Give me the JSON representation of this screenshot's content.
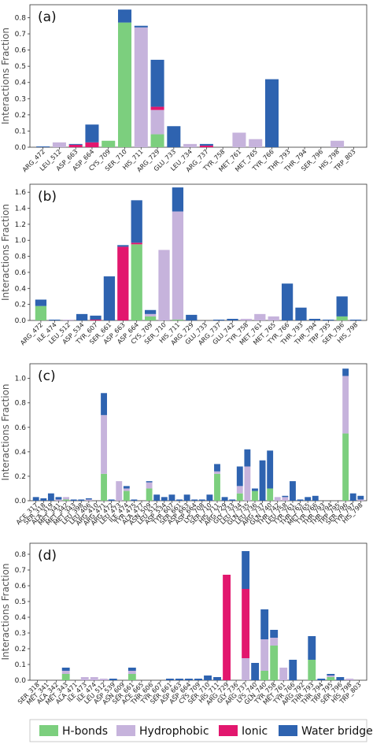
{
  "colors": {
    "H-bonds": "#7ccf7e",
    "Hydrophobic": "#c6b3dc",
    "Ionic": "#e2176e",
    "Water bridges": "#2e63b0"
  },
  "legend": {
    "position": "bottom",
    "items": [
      "H-bonds",
      "Hydrophobic",
      "Ionic",
      "Water bridges"
    ]
  },
  "chart_data": [
    {
      "type": "bar",
      "stacked": true,
      "panel_label": "(a)",
      "ylabel": "Interactions Fraction",
      "ylim": [
        0,
        0.88
      ],
      "yticks": [
        0.0,
        0.1,
        0.2,
        0.3,
        0.4,
        0.5,
        0.6,
        0.7,
        0.8
      ],
      "categories": [
        "ARG_472",
        "LEU_512",
        "ASP_663",
        "ASP_664",
        "CYS_709",
        "SER_710",
        "HIS_711",
        "ARG_729",
        "GLU_733",
        "LEU_734",
        "ARG_737",
        "TYR_758",
        "MET_761",
        "MET_765",
        "TYR_766",
        "THR_793",
        "THR_794",
        "SER_796",
        "HIS_798",
        "TRP_803"
      ],
      "series": [
        {
          "name": "H-bonds",
          "values": [
            0,
            0,
            0,
            0,
            0.04,
            0.77,
            0,
            0.08,
            0,
            0,
            0,
            0,
            0,
            0,
            0,
            0,
            0,
            0,
            0,
            0
          ]
        },
        {
          "name": "Hydrophobic",
          "values": [
            0,
            0.03,
            0,
            0,
            0,
            0,
            0.74,
            0.15,
            0,
            0.02,
            0,
            0,
            0.09,
            0.05,
            0,
            0,
            0,
            0,
            0.04,
            0
          ]
        },
        {
          "name": "Ionic",
          "values": [
            0,
            0,
            0.015,
            0.03,
            0,
            0,
            0,
            0.02,
            0,
            0,
            0.01,
            0,
            0,
            0,
            0,
            0,
            0,
            0,
            0,
            0
          ]
        },
        {
          "name": "Water bridges",
          "values": [
            0.005,
            0,
            0.005,
            0.11,
            0,
            0.08,
            0.01,
            0.29,
            0.13,
            0,
            0.01,
            0,
            0,
            0,
            0.42,
            0,
            0,
            0,
            0,
            0
          ]
        }
      ]
    },
    {
      "type": "bar",
      "stacked": true,
      "panel_label": "(b)",
      "ylabel": "Interactions Fraction",
      "ylim": [
        0,
        1.7
      ],
      "yticks": [
        0.0,
        0.2,
        0.4,
        0.6,
        0.8,
        1.0,
        1.2,
        1.4,
        1.6
      ],
      "categories": [
        "ARG_472",
        "ILE_474",
        "LEU_512",
        "ASP_534",
        "TYR_607",
        "SER_661",
        "ASP_663",
        "ASP_664",
        "CYS_709",
        "SER_710",
        "HIS_711",
        "ARG_729",
        "GLU_733",
        "ARG_737",
        "GLU_742",
        "TYR_758",
        "MET_761",
        "MET_765",
        "TYR_766",
        "THR_793",
        "THR_794",
        "TRP_795",
        "SER_796",
        "HIS_798"
      ],
      "series": [
        {
          "name": "H-bonds",
          "values": [
            0.18,
            0,
            0,
            0,
            0,
            0,
            0,
            0.95,
            0.05,
            0,
            0.01,
            0,
            0,
            0,
            0,
            0,
            0,
            0,
            0,
            0,
            0,
            0,
            0.05,
            0
          ]
        },
        {
          "name": "Hydrophobic",
          "values": [
            0,
            0,
            0.01,
            0,
            0,
            0,
            0,
            0,
            0.03,
            0.88,
            1.35,
            0,
            0,
            0,
            0,
            0.02,
            0.08,
            0.05,
            0,
            0,
            0,
            0,
            0,
            0
          ]
        },
        {
          "name": "Ionic",
          "values": [
            0,
            0,
            0,
            0,
            0.01,
            0,
            0.92,
            0.02,
            0,
            0,
            0,
            0,
            0,
            0,
            0,
            0,
            0,
            0,
            0,
            0,
            0,
            0,
            0,
            0
          ]
        },
        {
          "name": "Water bridges",
          "values": [
            0.08,
            0.01,
            0,
            0.08,
            0.05,
            0.55,
            0.02,
            0.53,
            0.05,
            0,
            0.3,
            0.07,
            0,
            0.01,
            0.02,
            0,
            0,
            0,
            0.46,
            0.16,
            0.02,
            0.01,
            0.25,
            0.01
          ]
        }
      ]
    },
    {
      "type": "bar",
      "stacked": true,
      "panel_label": "(c)",
      "ylabel": "Interactions Fraction",
      "ylim": [
        0,
        1.12
      ],
      "yticks": [
        0.0,
        0.2,
        0.4,
        0.6,
        0.8,
        1.0
      ],
      "categories": [
        "ACE_317",
        "SER_318",
        "ALA_319",
        "MET_341",
        "MET_342",
        "MET_343",
        "LEU_398",
        "LEU_406",
        "ARG_410",
        "ARG_471",
        "ARG_472",
        "LEU_473",
        "ILE_474",
        "TYR_475",
        "ALA_477",
        "ASN_509",
        "LEU_512",
        "ASP_534",
        "TYR_607",
        "SER_661",
        "ASP_663",
        "ASP_664",
        "LYS_708",
        "SER_710",
        "HIS_711",
        "ARG_729",
        "GLY_733",
        "LEU_734",
        "GLN_735",
        "LEU_736",
        "ARG_737",
        "GLN_740",
        "THR_742",
        "LEU_758",
        "TYR_761",
        "THR_763",
        "MET_765",
        "TYR_766",
        "THR_793",
        "THR_794",
        "TRP_795",
        "SER_796",
        "TYR_797",
        "HIS_798"
      ],
      "series": [
        {
          "name": "H-bonds",
          "values": [
            0,
            0,
            0,
            0,
            0.01,
            0,
            0,
            0,
            0,
            0.22,
            0,
            0,
            0.08,
            0,
            0,
            0.1,
            0,
            0,
            0,
            0,
            0,
            0,
            0,
            0,
            0.22,
            0,
            0,
            0.06,
            0,
            0.08,
            0,
            0.1,
            0,
            0,
            0,
            0,
            0,
            0,
            0,
            0,
            0,
            0.55,
            0,
            0
          ]
        },
        {
          "name": "Hydrophobic",
          "values": [
            0,
            0,
            0,
            0.01,
            0.02,
            0,
            0,
            0.01,
            0,
            0.48,
            0,
            0.16,
            0.02,
            0,
            0,
            0.05,
            0,
            0,
            0,
            0,
            0,
            0,
            0,
            0,
            0.02,
            0,
            0,
            0.06,
            0.28,
            0,
            0,
            0,
            0.03,
            0.03,
            0,
            0,
            0,
            0,
            0,
            0,
            0,
            0.47,
            0,
            0.01
          ]
        },
        {
          "name": "Ionic",
          "values": [
            0,
            0,
            0,
            0,
            0,
            0,
            0,
            0,
            0,
            0,
            0,
            0,
            0,
            0,
            0,
            0,
            0,
            0,
            0,
            0,
            0,
            0,
            0,
            0,
            0,
            0,
            0,
            0,
            0,
            0,
            0,
            0,
            0,
            0,
            0,
            0,
            0,
            0,
            0,
            0,
            0,
            0,
            0,
            0
          ]
        },
        {
          "name": "Water bridges",
          "values": [
            0.03,
            0.02,
            0.06,
            0.02,
            0,
            0.01,
            0.01,
            0.01,
            0,
            0.18,
            0.01,
            0,
            0.02,
            0.01,
            0,
            0.01,
            0.05,
            0.03,
            0.05,
            0.01,
            0.05,
            0.01,
            0.01,
            0.05,
            0.06,
            0.03,
            0.01,
            0.16,
            0.14,
            0.02,
            0.33,
            0.31,
            0,
            0.01,
            0.16,
            0.01,
            0.03,
            0.04,
            0,
            0,
            0,
            0.06,
            0.06,
            0.03
          ]
        }
      ]
    },
    {
      "type": "bar",
      "stacked": true,
      "panel_label": "(d)",
      "ylabel": "Interactions Fraction",
      "ylim": [
        0,
        0.87
      ],
      "yticks": [
        0.0,
        0.1,
        0.2,
        0.3,
        0.4,
        0.5,
        0.6,
        0.7,
        0.8
      ],
      "categories": [
        "SER_318",
        "MET_341",
        "ALA_342",
        "MET_343",
        "ALA_471",
        "ILE_473",
        "ILE_474",
        "LEU_512",
        "ASP_539",
        "ASN_609",
        "SER_661",
        "ACE_665",
        "THR_606",
        "TYR_607",
        "SER_661",
        "ASP_663",
        "ASP_664",
        "CYS_709",
        "SER_710",
        "HIS_711",
        "ARG_729",
        "GLY_736",
        "ARG_737",
        "LYS_740",
        "GLN_740",
        "TYR_758",
        "MET_761",
        "TYR_766",
        "ARG_792",
        "THR_793",
        "THR_794",
        "TRP_795",
        "SER_796",
        "HIS_798",
        "TRP_803"
      ],
      "series": [
        {
          "name": "H-bonds",
          "values": [
            0,
            0,
            0,
            0.04,
            0,
            0,
            0,
            0,
            0,
            0,
            0.04,
            0,
            0,
            0,
            0,
            0,
            0,
            0,
            0,
            0,
            0,
            0,
            0,
            0,
            0.06,
            0.22,
            0,
            0,
            0,
            0.13,
            0,
            0.02,
            0,
            0,
            0
          ]
        },
        {
          "name": "Hydrophobic",
          "values": [
            0,
            0,
            0,
            0.02,
            0,
            0.02,
            0.02,
            0.01,
            0,
            0,
            0.02,
            0,
            0,
            0,
            0,
            0,
            0,
            0,
            0,
            0,
            0,
            0,
            0.14,
            0,
            0.2,
            0.05,
            0.08,
            0,
            0,
            0,
            0,
            0.01,
            0,
            0.01,
            0
          ]
        },
        {
          "name": "Ionic",
          "values": [
            0,
            0,
            0,
            0,
            0,
            0,
            0,
            0,
            0,
            0,
            0,
            0,
            0,
            0,
            0,
            0,
            0,
            0,
            0,
            0,
            0.67,
            0,
            0.44,
            0,
            0,
            0,
            0,
            0,
            0,
            0,
            0,
            0,
            0,
            0,
            0
          ]
        },
        {
          "name": "Water bridges",
          "values": [
            0,
            0,
            0,
            0.02,
            0,
            0,
            0,
            0,
            0.01,
            0,
            0.02,
            0,
            0,
            0,
            0.01,
            0.01,
            0.01,
            0.01,
            0.03,
            0.02,
            0,
            0,
            0.24,
            0.11,
            0.19,
            0.05,
            0,
            0.13,
            0,
            0.15,
            0.01,
            0.01,
            0.02,
            0,
            0
          ]
        }
      ]
    }
  ]
}
